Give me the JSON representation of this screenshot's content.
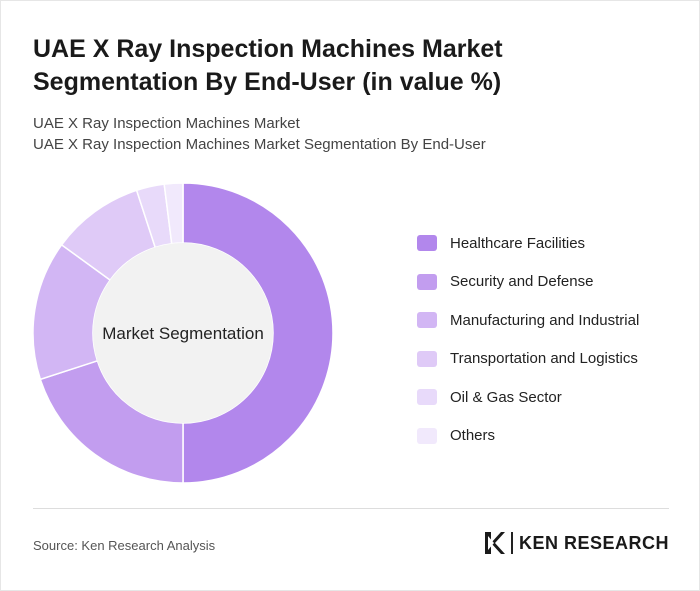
{
  "header": {
    "title": "UAE X Ray Inspection Machines Market Segmentation By End-User (in value %)",
    "subtitle_line1": "UAE X Ray Inspection Machines Market",
    "subtitle_line2": "UAE X Ray Inspection Machines Market Segmentation By End-User"
  },
  "chart_data": {
    "type": "pie",
    "variant": "donut",
    "center_label": "Market Segmentation",
    "categories": [
      "Healthcare Facilities",
      "Security and Defense",
      "Manufacturing and Industrial",
      "Transportation and Logistics",
      "Oil & Gas Sector",
      "Others"
    ],
    "values": [
      50,
      20,
      15,
      10,
      3,
      2
    ],
    "colors": [
      "#b287ec",
      "#c29def",
      "#d2b6f4",
      "#dfcaf7",
      "#e8dafa",
      "#f1e9fc"
    ],
    "legend_position": "right"
  },
  "footer": {
    "source": "Source: Ken Research Analysis",
    "brand": "KEN RESEARCH",
    "brand_icon": "ken-research-logo"
  }
}
